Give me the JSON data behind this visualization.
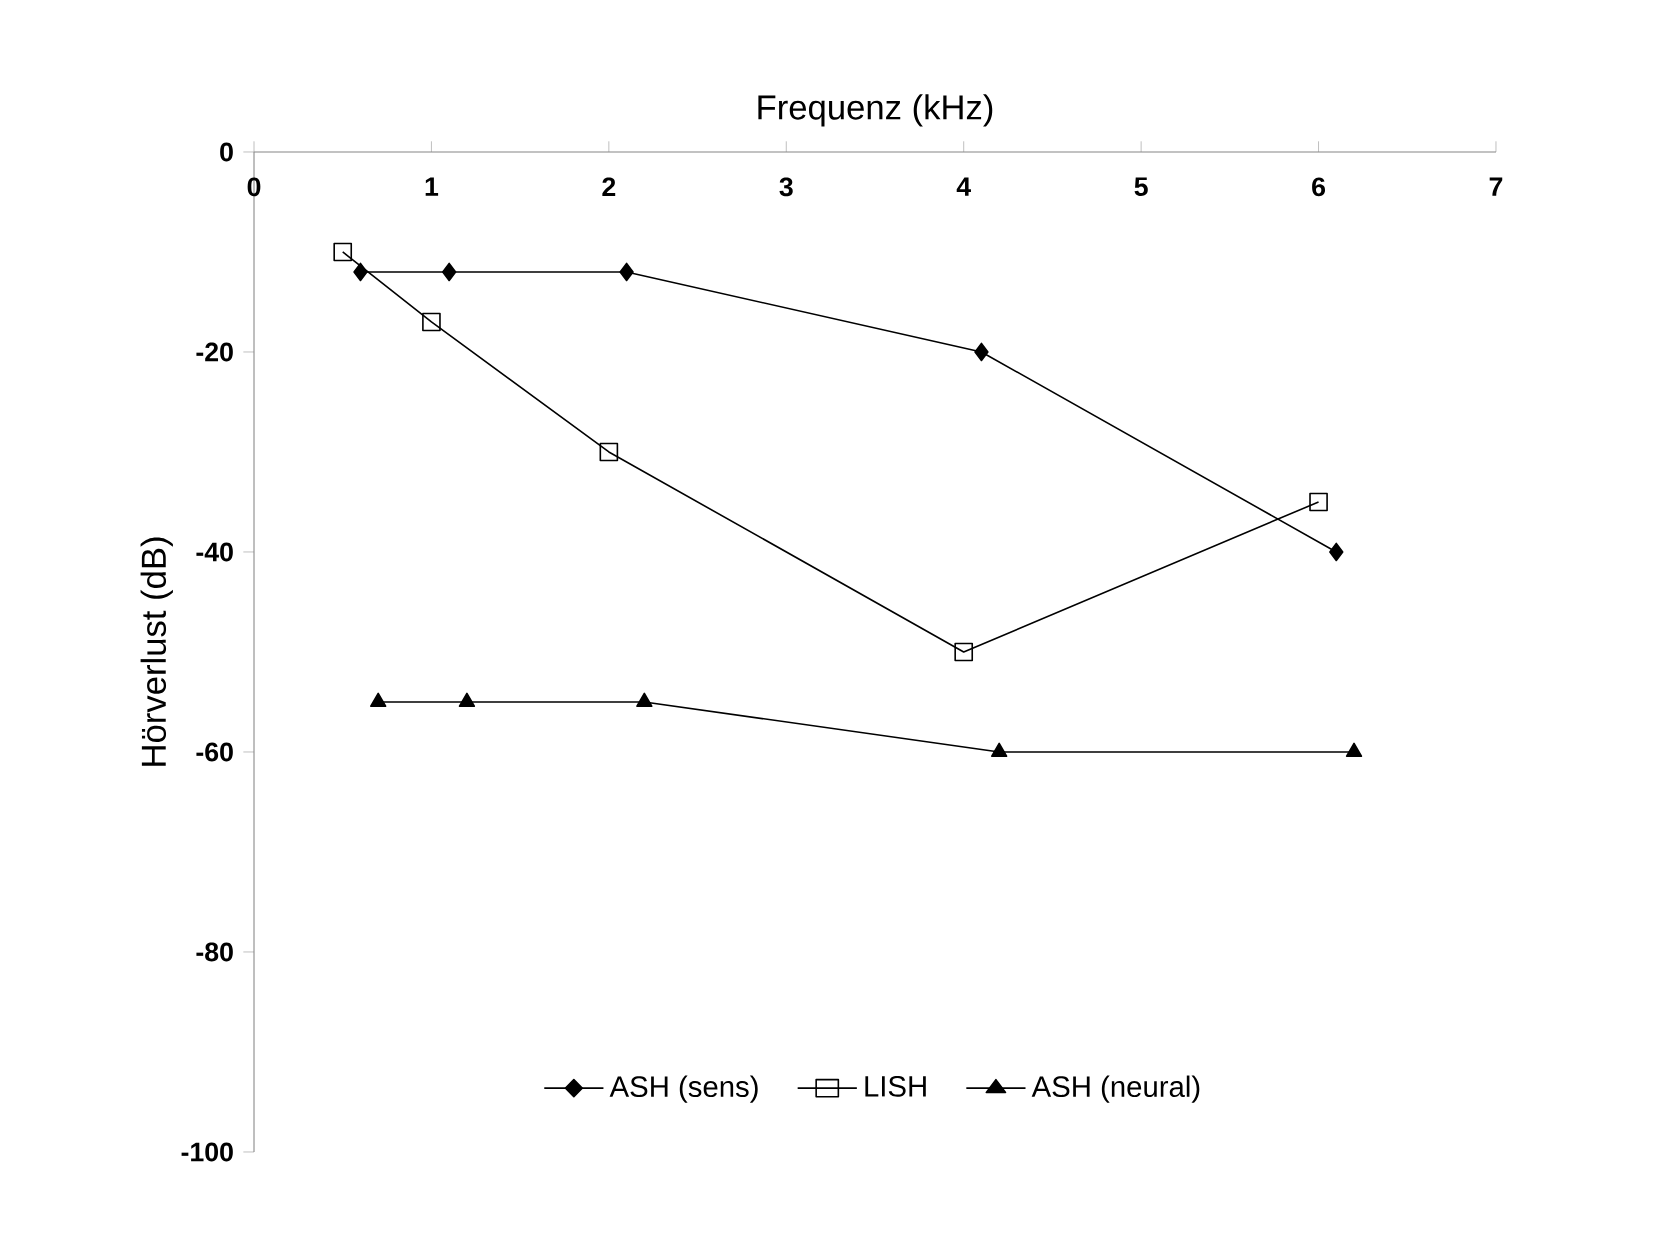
{
  "chart_data": {
    "type": "line",
    "xlabel": "Frequenz (kHz)",
    "ylabel": "Hörverlust  (dB)",
    "xlim": [
      0,
      7
    ],
    "xticks": [
      0,
      1,
      2,
      3,
      4,
      5,
      6,
      7
    ],
    "ylim": [
      -100,
      0
    ],
    "yticks": [
      -100,
      -80,
      -60,
      -40,
      -20,
      0
    ],
    "legend": "bottom",
    "grid": false,
    "line_style": "solid",
    "series": [
      {
        "name": "ASH (sens)",
        "color": "#000000",
        "marker": "diamond",
        "x": [
          0.6,
          1.1,
          2.1,
          4.1,
          6.1
        ],
        "values": [
          -12,
          -12,
          -12,
          -20,
          -40
        ]
      },
      {
        "name": "LISH",
        "color": "#000000",
        "marker": "square",
        "x": [
          0.5,
          1.0,
          2.0,
          4.0,
          6.0
        ],
        "values": [
          -10,
          -17,
          -30,
          -50,
          -35
        ]
      },
      {
        "name": "ASH (neural)",
        "color": "#000000",
        "marker": "triangle",
        "x": [
          0.7,
          1.2,
          2.2,
          4.2,
          6.2
        ],
        "values": [
          -55,
          -55,
          -55,
          -60,
          -60
        ]
      }
    ]
  }
}
